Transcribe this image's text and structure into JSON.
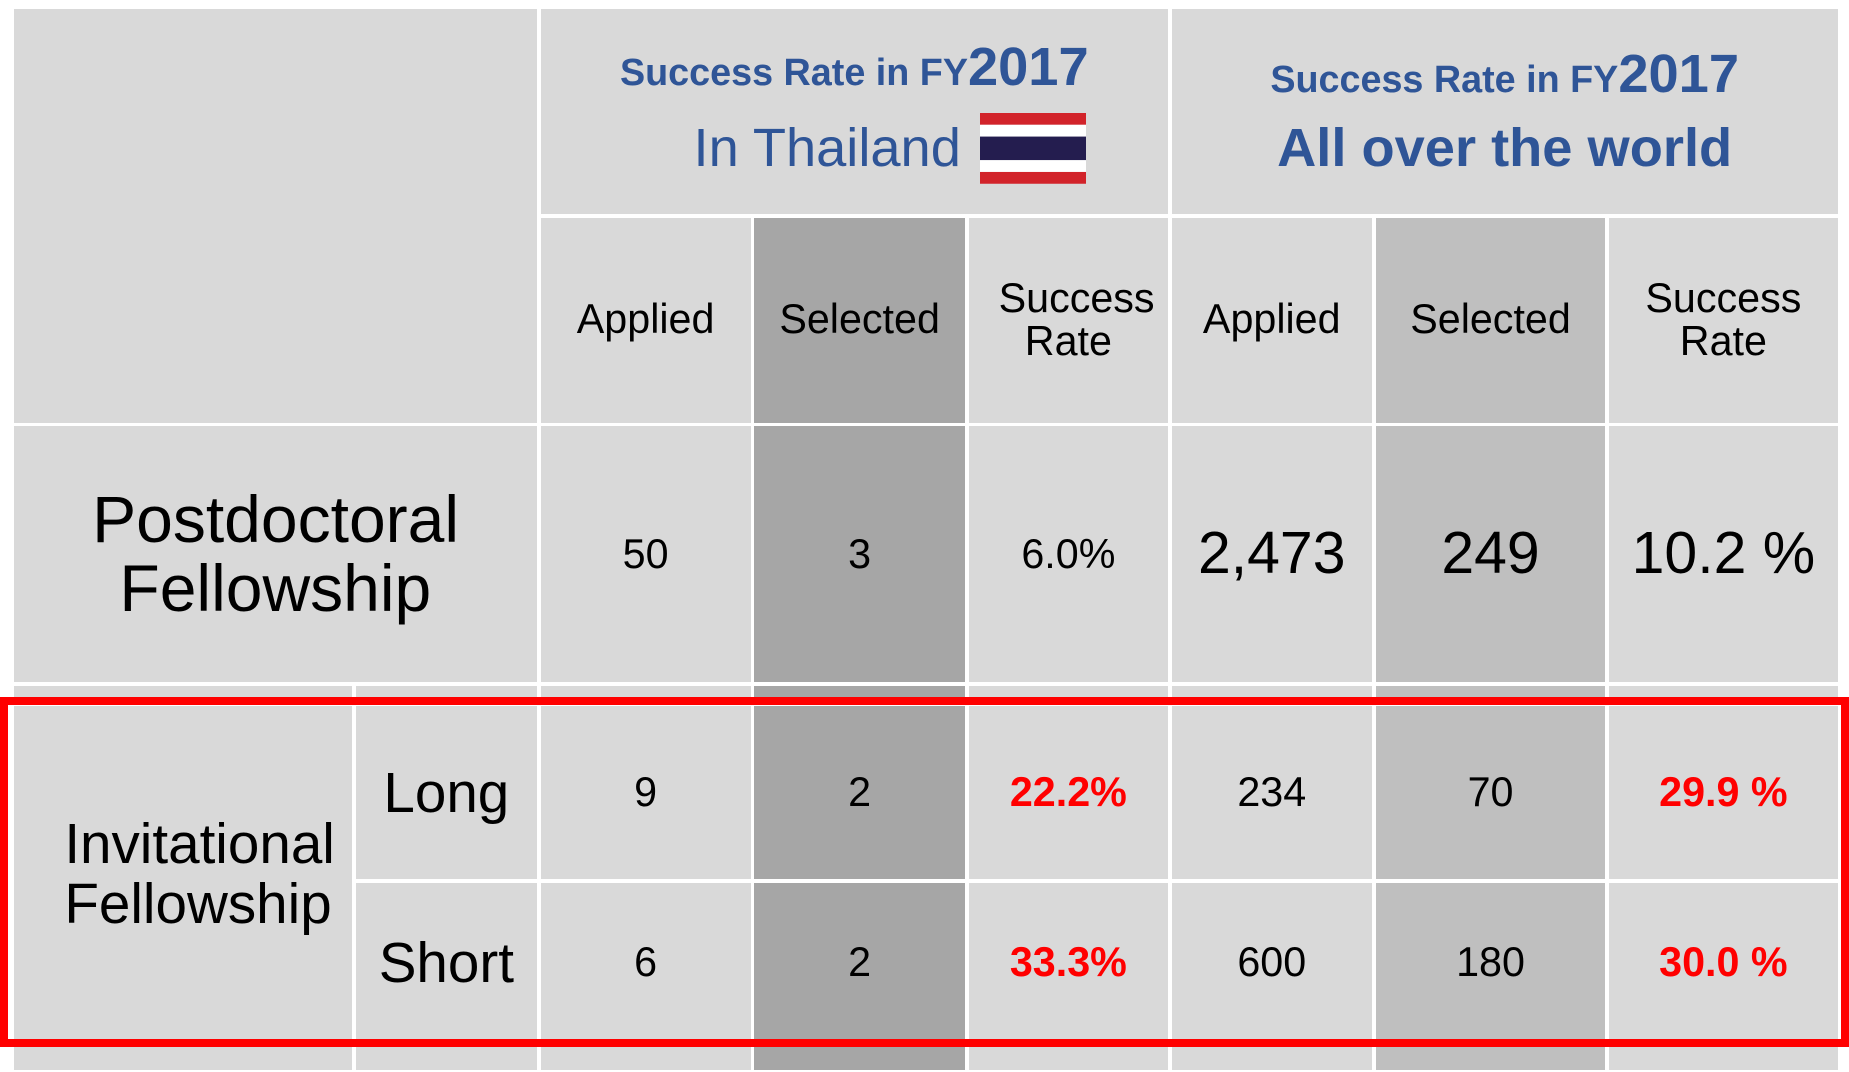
{
  "groups": [
    {
      "prefix": "Success Rate in FY",
      "year": "2017",
      "region": "In Thailand",
      "columns": [
        "Applied",
        "Selected",
        "Success Rate"
      ]
    },
    {
      "prefix": "Success Rate in FY",
      "year": "2017",
      "region": "All over the world",
      "columns": [
        "Applied",
        "Selected",
        "Success Rate"
      ]
    }
  ],
  "rows": [
    {
      "label": "Postdoctoral Fellowship",
      "thailand": [
        "50",
        "3",
        "6.0%"
      ],
      "world": [
        "2,473",
        "249",
        "10.2 %"
      ]
    },
    {
      "label": "Invitational Fellowship",
      "sub": [
        {
          "label": "Long",
          "thailand": [
            "9",
            "2",
            "22.2%"
          ],
          "world": [
            "234",
            "70",
            "29.9 %"
          ]
        },
        {
          "label": "Short",
          "thailand": [
            "6",
            "2",
            "33.3%"
          ],
          "world": [
            "600",
            "180",
            "30.0 %"
          ]
        }
      ]
    }
  ]
}
